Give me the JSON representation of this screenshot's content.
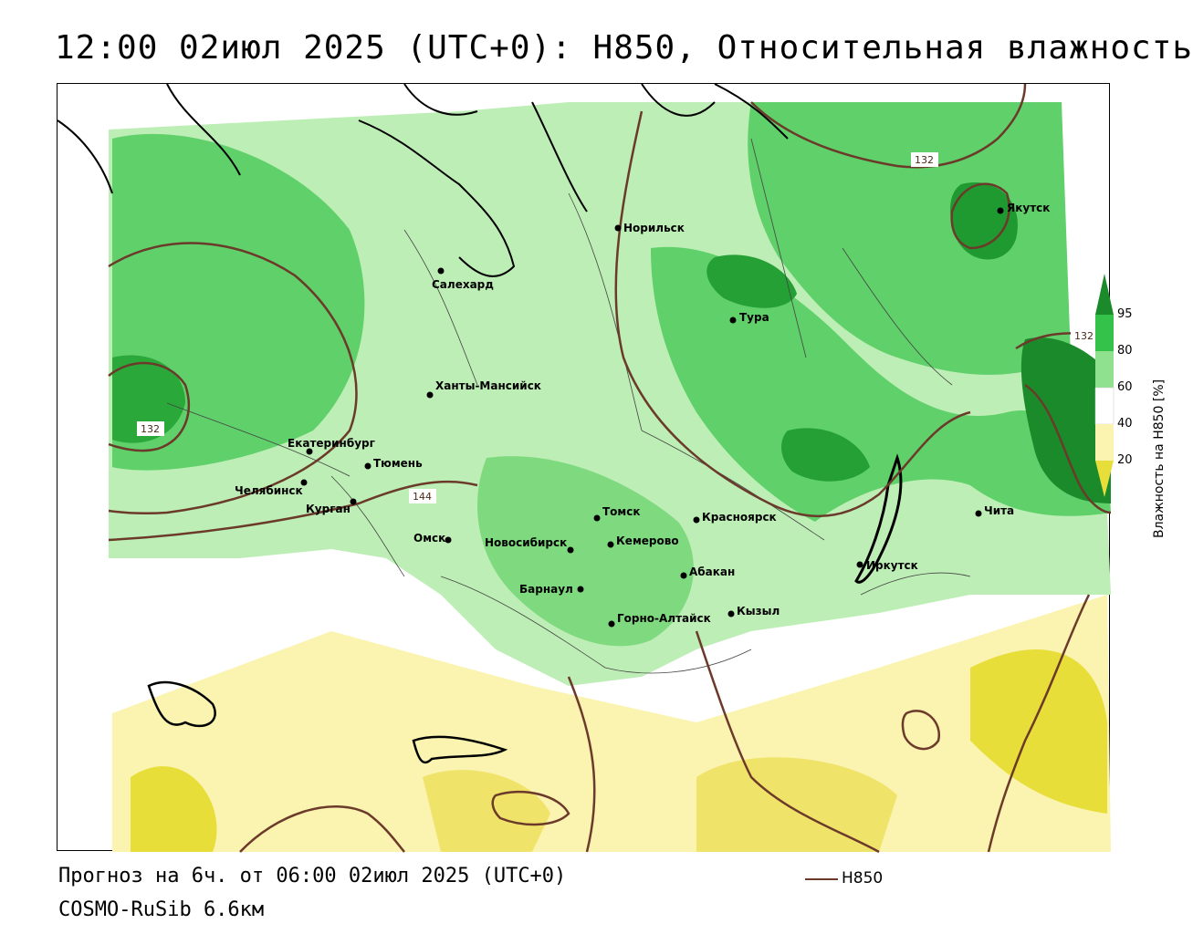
{
  "title": "12:00 02июл 2025 (UTC+0): H850, Относительная влажность",
  "footer": {
    "forecast": "Прогноз на 6ч. от 06:00 02июл 2025 (UTC+0)",
    "model": "COSMO-RuSib 6.6км"
  },
  "legend": {
    "line_label": "H850",
    "line_color": "#6b3a2a"
  },
  "colorbar": {
    "title": "Влажность на H850 [%]",
    "ticks": [
      "95",
      "80",
      "60",
      "40",
      "20"
    ],
    "colors": [
      "#1a8a2a",
      "#35c24a",
      "#8fe08f",
      "#d6f5d0",
      "#ffffff",
      "#fbf3b0",
      "#e8de3a"
    ]
  },
  "contour_labels": [
    "132",
    "132",
    "132",
    "144"
  ],
  "cities": [
    {
      "name": "Якутск"
    },
    {
      "name": "Норильск"
    },
    {
      "name": "Салехард"
    },
    {
      "name": "Тура"
    },
    {
      "name": "Ханты-Мансийск"
    },
    {
      "name": "Екатеринбург"
    },
    {
      "name": "Тюмень"
    },
    {
      "name": "Челябинск"
    },
    {
      "name": "Курган"
    },
    {
      "name": "Омск"
    },
    {
      "name": "Томск"
    },
    {
      "name": "Красноярск"
    },
    {
      "name": "Новосибирск"
    },
    {
      "name": "Кемерово"
    },
    {
      "name": "Абакан"
    },
    {
      "name": "Барнаул"
    },
    {
      "name": "Горно-Алтайск"
    },
    {
      "name": "Кызыл"
    },
    {
      "name": "Иркутск"
    },
    {
      "name": "Чита"
    }
  ]
}
